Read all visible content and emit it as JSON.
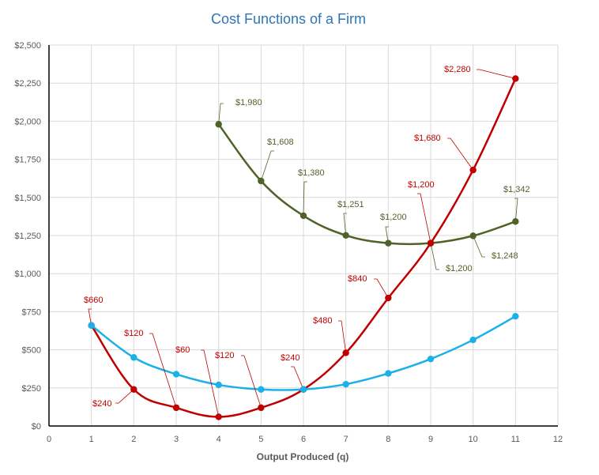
{
  "chart_data": {
    "type": "line",
    "title": "Cost Functions of a Firm",
    "xlabel": "Output Produced (q)",
    "ylabel": "",
    "xlim": [
      0,
      12
    ],
    "ylim": [
      0,
      2500
    ],
    "x_ticks": [
      0,
      1,
      2,
      3,
      4,
      5,
      6,
      7,
      8,
      9,
      10,
      11,
      12
    ],
    "y_ticks": [
      0,
      250,
      500,
      750,
      1000,
      1250,
      1500,
      1750,
      2000,
      2250,
      2500
    ],
    "y_tick_labels": [
      "$0",
      "$250",
      "$500",
      "$750",
      "$1,000",
      "$1,250",
      "$1,500",
      "$1,750",
      "$2,000",
      "$2,250",
      "$2,500"
    ],
    "grid": true,
    "legend": "none",
    "colors": {
      "title": "#2e75b6",
      "olive": "#4f6228",
      "red": "#c00000",
      "blue": "#1ab0e8",
      "grid": "#d9d9d9",
      "axis": "#000000"
    },
    "series": [
      {
        "color": "#4f6228",
        "x": [
          4,
          5,
          6,
          7,
          8,
          9,
          10,
          11
        ],
        "y": [
          1980,
          1608,
          1380,
          1251,
          1200,
          1200,
          1248,
          1342
        ],
        "labels": [
          "$1,980",
          "$1,608",
          "$1,380",
          "$1,251",
          "$1,200",
          "$1,200",
          "$1,248",
          "$1,342"
        ]
      },
      {
        "color": "#c00000",
        "x": [
          1,
          2,
          3,
          4,
          5,
          6,
          7,
          8,
          9,
          10,
          11
        ],
        "y": [
          660,
          240,
          120,
          60,
          120,
          240,
          480,
          840,
          1200,
          1680,
          2280
        ],
        "labels": [
          "$660",
          "$240",
          "$120",
          "$60",
          "$120",
          "$240",
          "$480",
          "$840",
          "$1,200",
          "$1,680",
          "$2,280"
        ]
      },
      {
        "color": "#1ab0e8",
        "x": [
          1,
          2,
          3,
          4,
          5,
          6,
          7,
          8,
          9,
          10,
          11
        ],
        "y": [
          660,
          450,
          340,
          270,
          240,
          240,
          274,
          345,
          440,
          565,
          720
        ]
      }
    ]
  }
}
